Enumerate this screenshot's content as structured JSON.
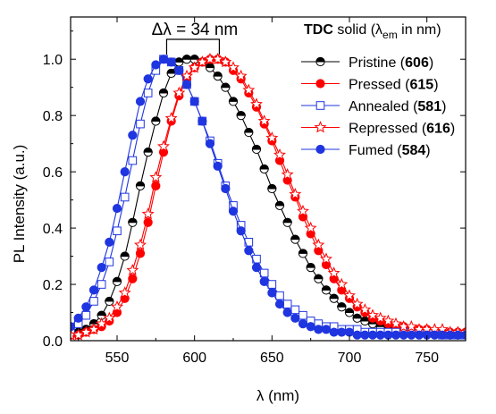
{
  "chart_data": {
    "type": "line",
    "xlabel": "λ (nm)",
    "ylabel": "PL Intensity (a.u.)",
    "xlim": [
      520,
      775
    ],
    "ylim": [
      0,
      1.15
    ],
    "xticks": [
      550,
      600,
      650,
      700,
      750
    ],
    "yticks": [
      0.0,
      0.2,
      0.4,
      0.6,
      0.8,
      1.0
    ],
    "ytick_labels": [
      "0.0",
      "0.2",
      "0.4",
      "0.6",
      "0.8",
      "1.0"
    ],
    "grid": false,
    "legend": {
      "placement": "top-right",
      "title_bold": "TDC",
      "title_text": " solid (λ",
      "title_sub": "em",
      "title_end": " in nm)"
    },
    "annotation": {
      "text": "Δλ = 34 nm",
      "from_x": 582,
      "to_x": 616
    },
    "series": [
      {
        "name": "Pristine",
        "peak_label": "606",
        "color": "#000000",
        "marker": "circle-half",
        "x": [
          520,
          525,
          530,
          535,
          540,
          545,
          550,
          555,
          560,
          565,
          570,
          575,
          580,
          585,
          590,
          595,
          600,
          605,
          610,
          615,
          620,
          625,
          630,
          635,
          640,
          645,
          650,
          655,
          660,
          665,
          670,
          675,
          680,
          685,
          690,
          695,
          700,
          705,
          710,
          715,
          720,
          725,
          730,
          735,
          740,
          745,
          750,
          755,
          760,
          765,
          770,
          775
        ],
        "y": [
          0.02,
          0.03,
          0.04,
          0.06,
          0.09,
          0.14,
          0.21,
          0.3,
          0.42,
          0.55,
          0.67,
          0.78,
          0.88,
          0.95,
          0.99,
          1.0,
          1.0,
          0.99,
          0.97,
          0.94,
          0.9,
          0.85,
          0.8,
          0.74,
          0.68,
          0.61,
          0.54,
          0.48,
          0.42,
          0.36,
          0.31,
          0.26,
          0.22,
          0.18,
          0.15,
          0.12,
          0.1,
          0.08,
          0.07,
          0.06,
          0.05,
          0.04,
          0.04,
          0.03,
          0.03,
          0.03,
          0.03,
          0.03,
          0.03,
          0.02,
          0.02,
          0.02
        ]
      },
      {
        "name": "Pressed",
        "peak_label": "615",
        "color": "#ff0000",
        "marker": "circle-filled",
        "x": [
          520,
          525,
          530,
          535,
          540,
          545,
          550,
          555,
          560,
          565,
          570,
          575,
          580,
          585,
          590,
          595,
          600,
          605,
          610,
          615,
          620,
          625,
          630,
          635,
          640,
          645,
          650,
          655,
          660,
          665,
          670,
          675,
          680,
          685,
          690,
          695,
          700,
          705,
          710,
          715,
          720,
          725,
          730,
          735,
          740,
          745,
          750,
          755,
          760,
          765,
          770,
          775
        ],
        "y": [
          0.02,
          0.02,
          0.03,
          0.04,
          0.05,
          0.07,
          0.1,
          0.15,
          0.22,
          0.31,
          0.42,
          0.55,
          0.67,
          0.78,
          0.87,
          0.93,
          0.97,
          0.99,
          1.0,
          1.0,
          0.99,
          0.96,
          0.93,
          0.88,
          0.83,
          0.77,
          0.71,
          0.64,
          0.57,
          0.51,
          0.44,
          0.38,
          0.32,
          0.27,
          0.22,
          0.18,
          0.15,
          0.12,
          0.1,
          0.08,
          0.07,
          0.06,
          0.05,
          0.05,
          0.04,
          0.04,
          0.04,
          0.03,
          0.03,
          0.03,
          0.03,
          0.03
        ]
      },
      {
        "name": "Annealed",
        "peak_label": "581",
        "color": "#1f35e0",
        "marker": "square-open",
        "x": [
          520,
          525,
          530,
          535,
          540,
          545,
          550,
          555,
          560,
          565,
          570,
          575,
          580,
          585,
          590,
          595,
          600,
          605,
          610,
          615,
          620,
          625,
          630,
          635,
          640,
          645,
          650,
          655,
          660,
          665,
          670,
          675,
          680,
          685,
          690,
          695,
          700,
          705,
          710,
          715,
          720,
          725,
          730,
          735,
          740,
          745,
          750,
          755,
          760,
          765,
          770,
          775
        ],
        "y": [
          0.04,
          0.06,
          0.09,
          0.14,
          0.2,
          0.28,
          0.39,
          0.51,
          0.64,
          0.77,
          0.88,
          0.96,
          1.0,
          0.99,
          0.96,
          0.91,
          0.85,
          0.78,
          0.71,
          0.63,
          0.55,
          0.48,
          0.41,
          0.35,
          0.29,
          0.24,
          0.2,
          0.16,
          0.13,
          0.11,
          0.09,
          0.07,
          0.06,
          0.05,
          0.05,
          0.04,
          0.04,
          0.04,
          0.03,
          0.03,
          0.03,
          0.03,
          0.03,
          0.03,
          0.03,
          0.03,
          0.03,
          0.03,
          0.02,
          0.02,
          0.02,
          0.02
        ]
      },
      {
        "name": "Repressed",
        "peak_label": "616",
        "color": "#ff0000",
        "marker": "star-open",
        "x": [
          520,
          525,
          530,
          535,
          540,
          545,
          550,
          555,
          560,
          565,
          570,
          575,
          580,
          585,
          590,
          595,
          600,
          605,
          610,
          615,
          620,
          625,
          630,
          635,
          640,
          645,
          650,
          655,
          660,
          665,
          670,
          675,
          680,
          685,
          690,
          695,
          700,
          705,
          710,
          715,
          720,
          725,
          730,
          735,
          740,
          745,
          750,
          755,
          760,
          765,
          770,
          775
        ],
        "y": [
          0.02,
          0.02,
          0.03,
          0.04,
          0.06,
          0.08,
          0.12,
          0.17,
          0.25,
          0.34,
          0.45,
          0.58,
          0.69,
          0.79,
          0.88,
          0.94,
          0.97,
          0.99,
          1.0,
          1.0,
          0.99,
          0.97,
          0.94,
          0.89,
          0.84,
          0.78,
          0.72,
          0.66,
          0.59,
          0.52,
          0.46,
          0.4,
          0.34,
          0.29,
          0.24,
          0.2,
          0.16,
          0.13,
          0.11,
          0.09,
          0.08,
          0.07,
          0.06,
          0.05,
          0.05,
          0.04,
          0.04,
          0.04,
          0.04,
          0.03,
          0.03,
          0.03
        ]
      },
      {
        "name": "Fumed",
        "peak_label": "584",
        "color": "#1f35e0",
        "marker": "circle-filled",
        "x": [
          520,
          525,
          530,
          535,
          540,
          545,
          550,
          555,
          560,
          565,
          570,
          575,
          580,
          585,
          590,
          595,
          600,
          605,
          610,
          615,
          620,
          625,
          630,
          635,
          640,
          645,
          650,
          655,
          660,
          665,
          670,
          675,
          680,
          685,
          690,
          695,
          700,
          705,
          710,
          715,
          720,
          725,
          730,
          735,
          740,
          745,
          750,
          755,
          760,
          765,
          770,
          775
        ],
        "y": [
          0.05,
          0.08,
          0.12,
          0.18,
          0.26,
          0.35,
          0.47,
          0.6,
          0.73,
          0.85,
          0.93,
          0.98,
          1.0,
          0.99,
          0.96,
          0.91,
          0.85,
          0.78,
          0.7,
          0.62,
          0.54,
          0.46,
          0.39,
          0.32,
          0.26,
          0.21,
          0.17,
          0.13,
          0.1,
          0.08,
          0.06,
          0.05,
          0.04,
          0.04,
          0.03,
          0.03,
          0.03,
          0.02,
          0.02,
          0.02,
          0.02,
          0.02,
          0.02,
          0.02,
          0.02,
          0.02,
          0.02,
          0.02,
          0.02,
          0.02,
          0.02,
          0.02
        ]
      }
    ]
  }
}
